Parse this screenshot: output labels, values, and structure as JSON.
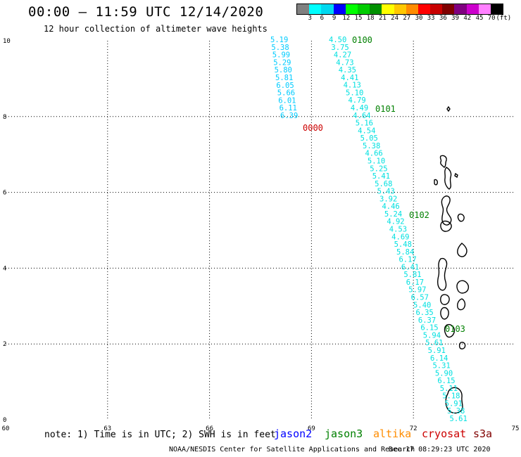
{
  "header": {
    "title": "00:00 – 11:59 UTC 12/14/2020",
    "subtitle": "12 hour collection of altimeter wave heights"
  },
  "legend": {
    "colors": [
      "#808080",
      "#00ffff",
      "#00d8f0",
      "#0000ff",
      "#00ff00",
      "#00cc00",
      "#009000",
      "#ffff00",
      "#ffc800",
      "#ff8c00",
      "#ff0000",
      "#c80000",
      "#800000",
      "#800080",
      "#cc00cc",
      "#ff80ff",
      "#000000"
    ],
    "labels": [
      "3",
      "6",
      "9",
      "12",
      "15",
      "18",
      "21",
      "24",
      "27",
      "30",
      "33",
      "36",
      "39",
      "42",
      "45",
      "70",
      "(ft)"
    ]
  },
  "axes": {
    "x_ticks": [
      "60",
      "63",
      "66",
      "69",
      "72",
      "75"
    ],
    "y_ticks": [
      "0",
      "2",
      "4",
      "6",
      "8",
      "10"
    ]
  },
  "tracks": [
    {
      "satellite": "cryosat",
      "color": "#00ccff",
      "time_label": "0000",
      "time_color": "#cc0000",
      "values": [
        "5.19",
        "5.38",
        "5.99",
        "5.29",
        "5.80",
        "5.81",
        "6.05",
        "5.66",
        "6.01",
        "6.11",
        "6.39"
      ]
    },
    {
      "satellite": "jason3",
      "color": "#00e0e0",
      "time_labels": [
        {
          "text": "0100",
          "color": "#008000"
        },
        {
          "text": "0101",
          "color": "#008000"
        },
        {
          "text": "0102",
          "color": "#008000"
        },
        {
          "text": "0103",
          "color": "#008000"
        }
      ],
      "values": [
        "4.50",
        "3.75",
        "4.27",
        "4.73",
        "4.35",
        "4.41",
        "4.13",
        "5.10",
        "4.79",
        "4.49",
        "4.64",
        "5.16",
        "4.54",
        "5.05",
        "5.38",
        "4.66",
        "5.10",
        "5.25",
        "5.41",
        "5.68",
        "5.43",
        "3.92",
        "4.46",
        "5.24",
        "4.92",
        "4.53",
        "4.69",
        "5.48",
        "5.84",
        "6.17",
        "6.41",
        "5.81",
        "6.17",
        "5.97",
        "6.57",
        "5.40",
        "6.35",
        "6.37",
        "6.15",
        "5.94",
        "5.61",
        "5.91",
        "6.14",
        "5.31",
        "5.90",
        "6.15",
        "5.11",
        "5.18",
        "5.91",
        "5.38",
        "5.61"
      ]
    }
  ],
  "note": "note: 1) Time is in UTC; 2) SWH is in feet",
  "satellites": [
    {
      "name": "jason2",
      "color": "#0000ff"
    },
    {
      "name": "jason3",
      "color": "#008000"
    },
    {
      "name": "altika",
      "color": "#ff8c00"
    },
    {
      "name": "cryosat",
      "color": "#cc0000"
    },
    {
      "name": "s3a",
      "color": "#800000"
    }
  ],
  "footer": {
    "credit": "NOAA/NESDIS Center for Satellite Applications and Research",
    "timestamp": "Dec 17 08:29:23 UTC 2020"
  }
}
